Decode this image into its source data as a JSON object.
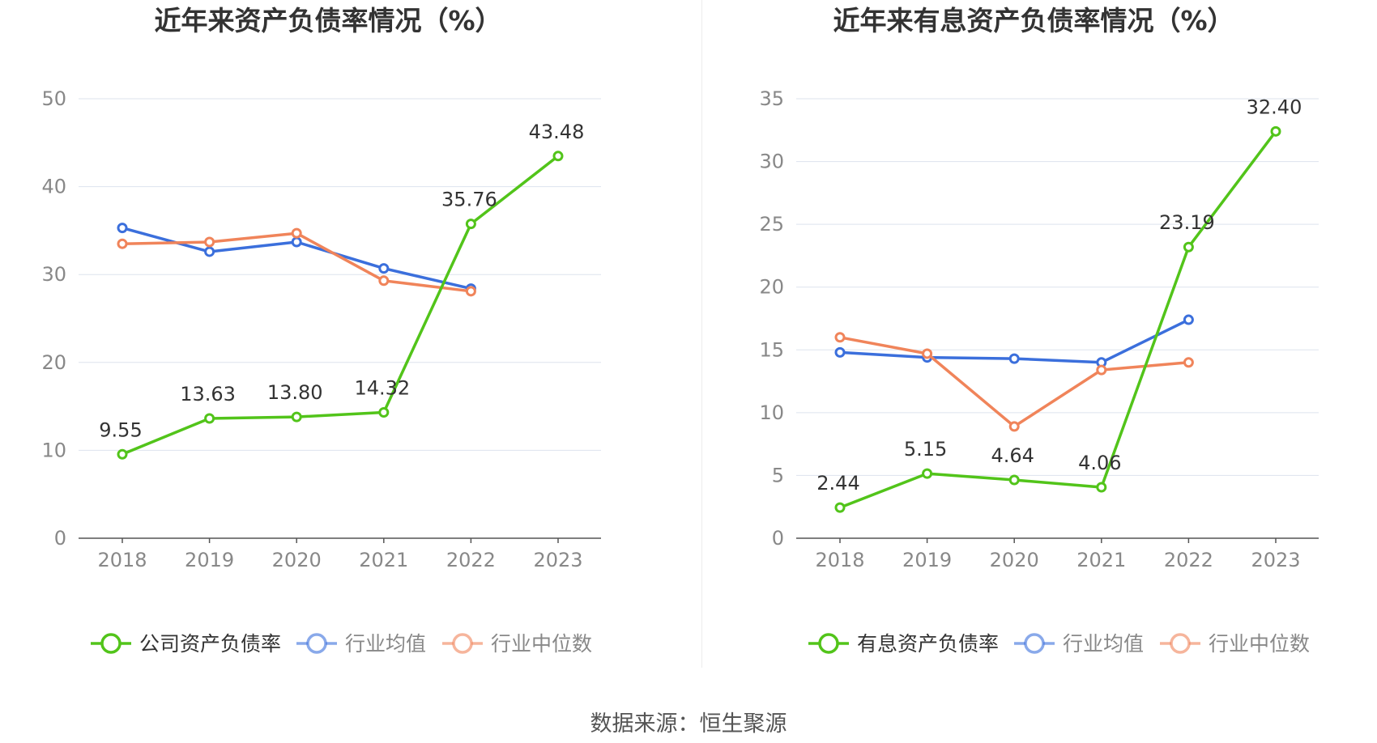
{
  "source_label": "数据来源：恒生聚源",
  "colors": {
    "company": "#52c41a",
    "industry_avg": "#3b6fdc",
    "industry_median": "#f0845a",
    "grid": "#dde3ee",
    "axis": "#555555",
    "tick_text": "#888888",
    "title_text": "#333333"
  },
  "chart_data": [
    {
      "type": "line",
      "title": "近年来资产负债率情况（%）",
      "categories": [
        "2018",
        "2019",
        "2020",
        "2021",
        "2022",
        "2023"
      ],
      "ylim": [
        0,
        50
      ],
      "yticks": [
        0,
        10,
        20,
        30,
        40,
        50
      ],
      "grid": true,
      "legend_position": "bottom",
      "series": [
        {
          "name": "公司资产负债率",
          "color": "#52c41a",
          "values": [
            9.55,
            13.63,
            13.8,
            14.32,
            35.76,
            43.48
          ],
          "labels": [
            "9.55",
            "13.63",
            "13.80",
            "14.32",
            "35.76",
            "43.48"
          ]
        },
        {
          "name": "行业均值",
          "color": "#3b6fdc",
          "values": [
            35.3,
            32.6,
            33.7,
            30.7,
            28.4,
            null
          ]
        },
        {
          "name": "行业中位数",
          "color": "#f0845a",
          "values": [
            33.5,
            33.7,
            34.7,
            29.3,
            28.1,
            null
          ]
        }
      ]
    },
    {
      "type": "line",
      "title": "近年来有息资产负债率情况（%）",
      "categories": [
        "2018",
        "2019",
        "2020",
        "2021",
        "2022",
        "2023"
      ],
      "ylim": [
        0,
        35
      ],
      "yticks": [
        0,
        5,
        10,
        15,
        20,
        25,
        30,
        35
      ],
      "grid": true,
      "legend_position": "bottom",
      "series": [
        {
          "name": "有息资产负债率",
          "color": "#52c41a",
          "values": [
            2.44,
            5.15,
            4.64,
            4.06,
            23.19,
            32.4
          ],
          "labels": [
            "2.44",
            "5.15",
            "4.64",
            "4.06",
            "23.19",
            "32.40"
          ]
        },
        {
          "name": "行业均值",
          "color": "#3b6fdc",
          "values": [
            14.8,
            14.4,
            14.3,
            14.0,
            17.4,
            null
          ]
        },
        {
          "name": "行业中位数",
          "color": "#f0845a",
          "values": [
            16.0,
            14.7,
            8.9,
            13.4,
            14.0,
            null
          ]
        }
      ]
    }
  ]
}
